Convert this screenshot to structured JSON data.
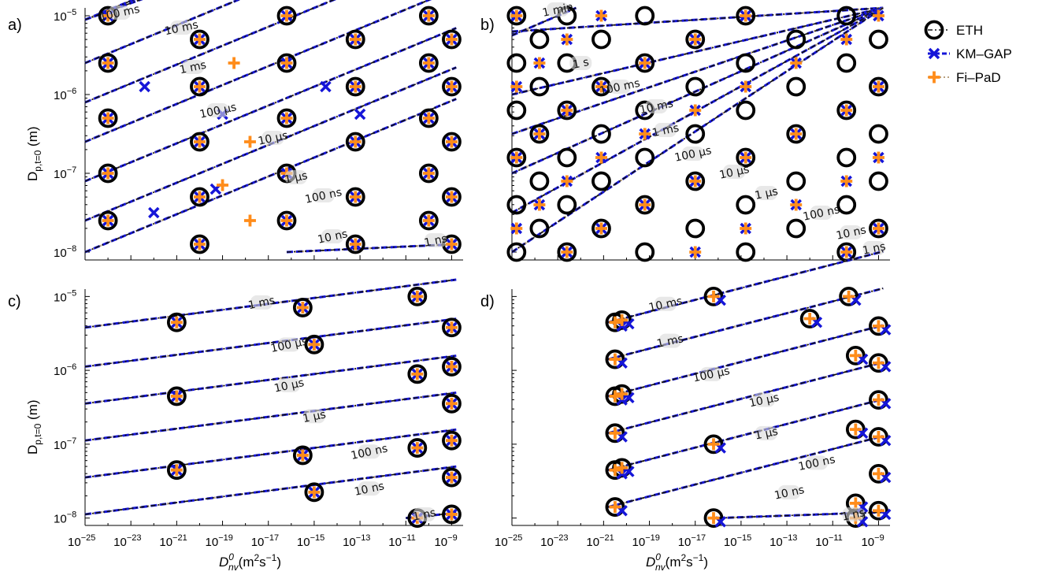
{
  "chart_data": [
    {
      "panel": "a)",
      "type": "scatter",
      "xlabel": "D_nv^0 (m²s⁻¹)",
      "ylabel": "D_p,t=0 (m)",
      "x_log_range": [
        -25,
        -8.5
      ],
      "y_log_range": [
        -8.1,
        -4.9
      ],
      "time_labels": [
        {
          "text": "100 ms",
          "x": -23.5,
          "y": -4.96
        },
        {
          "text": "10 ms",
          "x": -20.8,
          "y": -5.15
        },
        {
          "text": "1 ms",
          "x": -20.3,
          "y": -5.65
        },
        {
          "text": "100 µs",
          "x": -19.2,
          "y": -6.2
        },
        {
          "text": "10 µs",
          "x": -16.8,
          "y": -6.55
        },
        {
          "text": "1 µs",
          "x": -15.8,
          "y": -7.05
        },
        {
          "text": "100 ns",
          "x": -14.6,
          "y": -7.28
        },
        {
          "text": "10 ns",
          "x": -14.2,
          "y": -7.8
        },
        {
          "text": "1 ns",
          "x": -9.7,
          "y": -7.85
        }
      ]
    },
    {
      "panel": "b)",
      "type": "scatter",
      "x_log_range": [
        -25,
        -8.5
      ],
      "y_log_range": [
        -8.1,
        -4.9
      ],
      "time_labels": [
        {
          "text": "1 min",
          "x": -23.0,
          "y": -4.92
        },
        {
          "text": "1 s",
          "x": -22.0,
          "y": -5.6
        },
        {
          "text": "100 ms",
          "x": -20.3,
          "y": -5.9
        },
        {
          "text": "10 ms",
          "x": -18.7,
          "y": -6.15
        },
        {
          "text": "1 ms",
          "x": -18.3,
          "y": -6.45
        },
        {
          "text": "100 µs",
          "x": -17.1,
          "y": -6.75
        },
        {
          "text": "10 µs",
          "x": -15.3,
          "y": -6.98
        },
        {
          "text": "1 µs",
          "x": -13.9,
          "y": -7.25
        },
        {
          "text": "100 ns",
          "x": -11.5,
          "y": -7.5
        },
        {
          "text": "10 ns",
          "x": -10.2,
          "y": -7.75
        },
        {
          "text": "1 ns",
          "x": -9.2,
          "y": -7.95
        }
      ]
    },
    {
      "panel": "c)",
      "type": "scatter",
      "xlabel": "D_nv^0 (m²s⁻¹)",
      "ylabel": "D_p,t=0 (m)",
      "x_log_range": [
        -25,
        -8.5
      ],
      "y_log_range": [
        -8.1,
        -4.9
      ],
      "time_labels": [
        {
          "text": "1 ms",
          "x": -17.3,
          "y": -5.08
        },
        {
          "text": "100 µs",
          "x": -16.1,
          "y": -5.65
        },
        {
          "text": "10 µs",
          "x": -16.1,
          "y": -6.2
        },
        {
          "text": "1 µs",
          "x": -15.0,
          "y": -6.62
        },
        {
          "text": "100 ns",
          "x": -12.6,
          "y": -7.1
        },
        {
          "text": "10 ns",
          "x": -12.6,
          "y": -7.6
        },
        {
          "text": "1 ns",
          "x": -10.2,
          "y": -7.95
        }
      ]
    },
    {
      "panel": "d)",
      "type": "scatter",
      "xlabel": "D_nv^0 (m²s⁻¹)",
      "x_log_range": [
        -25,
        -8.5
      ],
      "y_log_range": [
        -8.1,
        -4.9
      ],
      "time_labels": [
        {
          "text": "10 ms",
          "x": -18.3,
          "y": -5.1
        },
        {
          "text": "1 ms",
          "x": -18.1,
          "y": -5.6
        },
        {
          "text": "100 µs",
          "x": -16.3,
          "y": -6.05
        },
        {
          "text": "10 µs",
          "x": -14.0,
          "y": -6.4
        },
        {
          "text": "1 µs",
          "x": -13.9,
          "y": -6.85
        },
        {
          "text": "100 ns",
          "x": -11.7,
          "y": -7.25
        },
        {
          "text": "10 ns",
          "x": -12.9,
          "y": -7.65
        },
        {
          "text": "1 ns",
          "x": -10.1,
          "y": -7.95
        }
      ]
    }
  ],
  "legend": [
    {
      "name": "ETH",
      "marker": "circle",
      "color": "#000000"
    },
    {
      "name": "KM–GAP",
      "marker": "x",
      "color": "#1515d8"
    },
    {
      "name": "Fi–PaD",
      "marker": "plus",
      "color": "#ff8c1a"
    }
  ],
  "panel_labels": [
    "a)",
    "b)",
    "c)",
    "d)"
  ],
  "ylabel_text": "D",
  "ylabel_sub": "p,t=0",
  "ylabel_unit": " (m)",
  "xlabel_text": "D",
  "xlabel_sup": "0",
  "xlabel_sub": "nv",
  "xlabel_unit": "(m",
  "xlabel_unit_sup": "2",
  "xlabel_unit_mid": "s",
  "xlabel_unit_sup2": "−1",
  "xlabel_unit_end": ")",
  "x_tick_exponents": [
    "−25",
    "−23",
    "−21",
    "−19",
    "−17",
    "−15",
    "−13",
    "−11",
    "−9"
  ],
  "y_tick_exponents": [
    "−8",
    "−7",
    "−6",
    "−5"
  ],
  "tick_base": "10",
  "colors": {
    "eth": "#000000",
    "kmgap": "#1515d8",
    "fipad": "#ff8c1a",
    "label_bg": "#d9d9d9"
  }
}
